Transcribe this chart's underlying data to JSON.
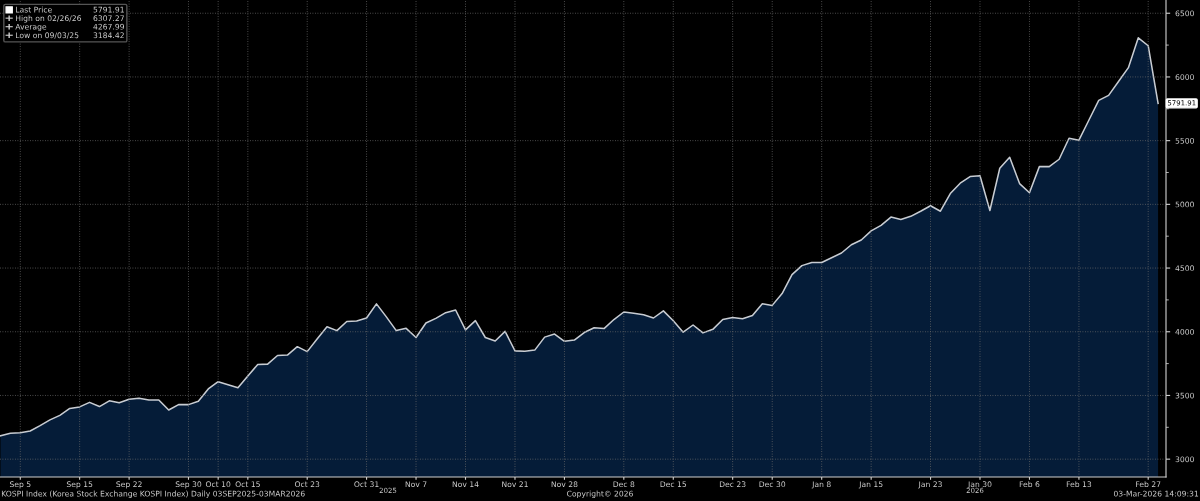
{
  "chart_data": {
    "type": "area",
    "categories": [
      null,
      null,
      "Sep 5",
      null,
      null,
      null,
      null,
      null,
      "Sep 15",
      null,
      null,
      null,
      null,
      "Sep 22",
      null,
      null,
      null,
      null,
      null,
      "Sep 30",
      null,
      null,
      "Oct 10",
      null,
      null,
      "Oct 15",
      null,
      null,
      null,
      null,
      null,
      "Oct 23",
      null,
      null,
      null,
      null,
      null,
      "Oct 31",
      null,
      null,
      null,
      null,
      "Nov 7",
      null,
      null,
      null,
      null,
      "Nov 14",
      null,
      null,
      null,
      null,
      "Nov 21",
      null,
      null,
      null,
      null,
      "Nov 28",
      null,
      null,
      null,
      null,
      null,
      "Dec 8",
      null,
      null,
      null,
      null,
      "Dec 15",
      null,
      null,
      null,
      null,
      null,
      "Dec 23",
      null,
      null,
      null,
      "Dec 30",
      null,
      null,
      null,
      null,
      "Jan 8",
      null,
      null,
      null,
      null,
      "Jan 15",
      null,
      null,
      null,
      null,
      null,
      "Jan 23",
      null,
      null,
      null,
      null,
      "Jan 30",
      null,
      null,
      null,
      null,
      "Feb 6",
      null,
      null,
      null,
      null,
      "Feb 13",
      null,
      null,
      null,
      null,
      null,
      null,
      "Feb 27",
      null
    ],
    "series": [
      {
        "name": "Last Price",
        "color": "#051c38",
        "values": [
          3184,
          3204,
          3207,
          3221,
          3263,
          3308,
          3344,
          3398,
          3410,
          3446,
          3413,
          3458,
          3443,
          3470,
          3479,
          3464,
          3464,
          3386,
          3428,
          3428,
          3455,
          3551,
          3608,
          3584,
          3560,
          3653,
          3743,
          3746,
          3814,
          3817,
          3883,
          3844,
          3943,
          4039,
          4009,
          4081,
          4084,
          4108,
          4219,
          4117,
          4009,
          4027,
          3955,
          4069,
          4105,
          4150,
          4171,
          4015,
          4087,
          3955,
          3928,
          4003,
          3850,
          3847,
          3856,
          3958,
          3982,
          3925,
          3935,
          3994,
          4031,
          4025,
          4096,
          4155,
          4145,
          4133,
          4108,
          4164,
          4087,
          3997,
          4053,
          3991,
          4019,
          4096,
          4111,
          4102,
          4127,
          4220,
          4207,
          4300,
          4448,
          4519,
          4544,
          4544,
          4581,
          4618,
          4683,
          4720,
          4792,
          4835,
          4900,
          4881,
          4906,
          4946,
          4989,
          4946,
          5085,
          5166,
          5218,
          5224,
          4952,
          5283,
          5370,
          5163,
          5091,
          5296,
          5296,
          5354,
          5519,
          5504,
          5660,
          5816,
          5855,
          5964,
          6073,
          6307,
          6245,
          5791.91
        ],
        "value_labels": [
          null,
          null,
          null,
          null,
          null,
          null,
          null,
          null,
          null,
          null,
          null,
          null,
          null,
          null,
          null,
          null,
          null,
          null,
          null,
          null,
          null,
          null,
          null,
          null,
          null,
          null,
          null,
          null,
          null,
          null,
          null,
          null,
          null,
          null,
          null,
          null,
          null,
          null,
          null,
          null,
          null,
          null,
          null,
          null,
          null,
          null,
          null,
          null,
          null,
          null,
          null,
          null,
          null,
          null,
          null,
          null,
          null,
          null,
          null,
          null,
          null,
          null,
          null,
          null,
          null,
          null,
          null,
          null,
          null,
          null,
          null,
          null,
          null,
          null,
          null,
          null,
          null,
          null,
          null,
          null,
          null,
          null,
          null,
          null,
          null,
          null,
          null,
          null,
          null,
          null,
          null,
          null,
          null,
          null,
          null,
          null,
          null,
          null,
          null,
          null,
          null,
          null,
          null,
          null,
          null,
          null,
          null,
          null,
          null,
          null,
          null,
          null,
          null,
          null,
          null,
          null,
          null,
          "5791.91"
        ]
      }
    ],
    "ylim": [
      2860,
      6600
    ],
    "yticks": [
      3000,
      {
        "value": 3250,
        "label": null
      },
      3500,
      {
        "value": 3750,
        "label": null
      },
      4000,
      {
        "value": 4250,
        "label": null
      },
      4500,
      {
        "value": 4750,
        "label": null
      },
      5000,
      {
        "value": 5250,
        "label": null
      },
      5500,
      {
        "value": 5750,
        "label": null
      },
      6000,
      {
        "value": 6250,
        "label": null
      },
      6500
    ],
    "grid": true,
    "legend": "top left",
    "annotations": [
      "5791.91",
      "High on 02/26/26",
      "6307.27",
      "Average",
      "4267.99",
      "Low on 09/03/25",
      "3184.42",
      "2025",
      "2026",
      "KOSPI Index (Korea Stock Exchange KOSPI Index) Daily 03SEP2025-03MAR2026",
      "Copyright© 2026",
      "03-Mar-2026 14:09:31"
    ]
  }
}
